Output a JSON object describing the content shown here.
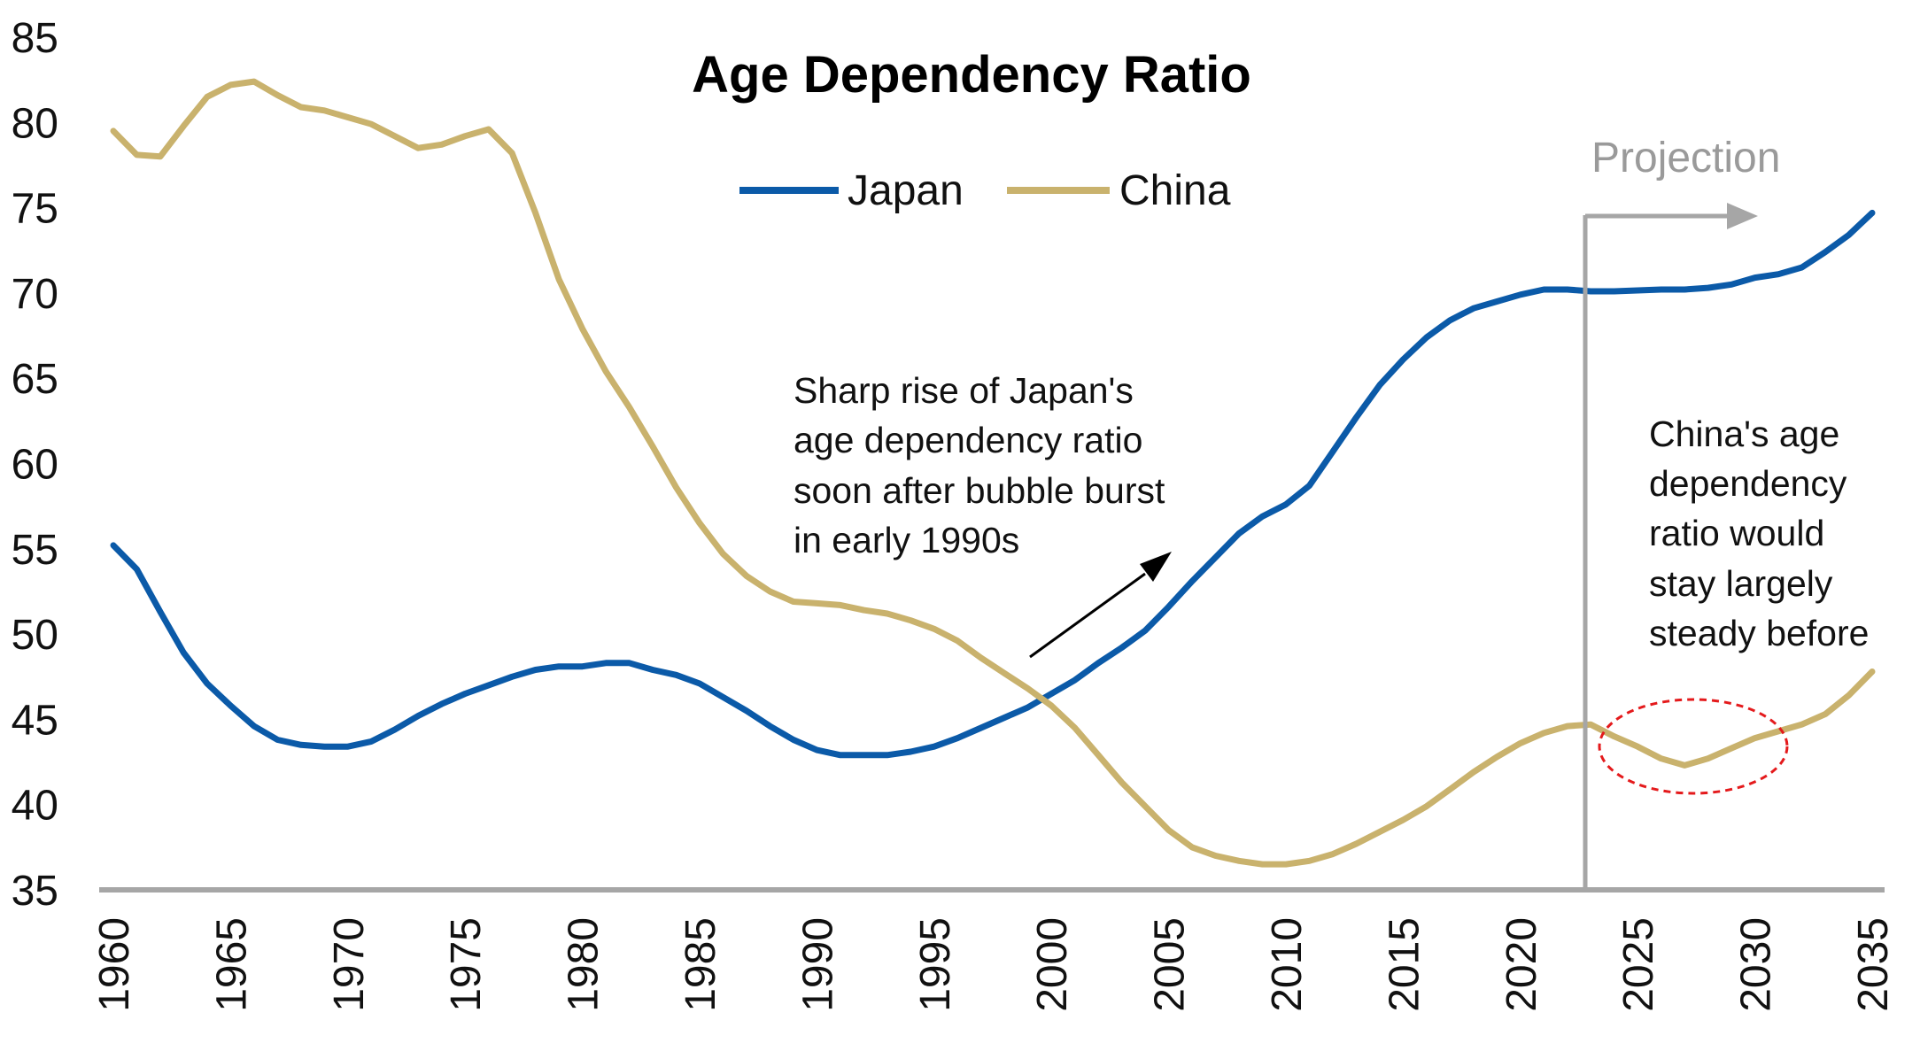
{
  "chart_data": {
    "type": "line",
    "title": "Age Dependency Ratio",
    "xlabel": "",
    "ylabel": "",
    "xlim": [
      1960,
      2035
    ],
    "ylim": [
      35,
      85
    ],
    "y_ticks": [
      35,
      40,
      45,
      50,
      55,
      60,
      65,
      70,
      75,
      80,
      85
    ],
    "x_ticks": [
      1960,
      1965,
      1970,
      1975,
      1980,
      1985,
      1990,
      1995,
      2000,
      2005,
      2010,
      2015,
      2020,
      2025,
      2030,
      2035
    ],
    "grid": false,
    "legend_position": "top-center",
    "x": [
      1960,
      1961,
      1962,
      1963,
      1964,
      1965,
      1966,
      1967,
      1968,
      1969,
      1970,
      1971,
      1972,
      1973,
      1974,
      1975,
      1976,
      1977,
      1978,
      1979,
      1980,
      1981,
      1982,
      1983,
      1984,
      1985,
      1986,
      1987,
      1988,
      1989,
      1990,
      1991,
      1992,
      1993,
      1994,
      1995,
      1996,
      1997,
      1998,
      1999,
      2000,
      2001,
      2002,
      2003,
      2004,
      2005,
      2006,
      2007,
      2008,
      2009,
      2010,
      2011,
      2012,
      2013,
      2014,
      2015,
      2016,
      2017,
      2018,
      2019,
      2020,
      2021,
      2022,
      2023,
      2024,
      2025,
      2026,
      2027,
      2028,
      2029,
      2030,
      2031,
      2032,
      2033,
      2034,
      2035
    ],
    "series": [
      {
        "name": "Japan",
        "color": "#0b5aa8",
        "values": [
          55.2,
          53.8,
          51.3,
          48.9,
          47.1,
          45.8,
          44.6,
          43.8,
          43.5,
          43.4,
          43.4,
          43.7,
          44.4,
          45.2,
          45.9,
          46.5,
          47.0,
          47.5,
          47.9,
          48.1,
          48.1,
          48.3,
          48.3,
          47.9,
          47.6,
          47.1,
          46.3,
          45.5,
          44.6,
          43.8,
          43.2,
          42.9,
          42.9,
          42.9,
          43.1,
          43.4,
          43.9,
          44.5,
          45.1,
          45.7,
          46.5,
          47.3,
          48.3,
          49.2,
          50.2,
          51.6,
          53.1,
          54.5,
          55.9,
          56.9,
          57.6,
          58.7,
          60.7,
          62.7,
          64.6,
          66.1,
          67.4,
          68.4,
          69.1,
          69.5,
          69.9,
          70.2,
          70.2,
          70.1,
          70.1,
          70.15,
          70.2,
          70.2,
          70.3,
          70.5,
          70.9,
          71.1,
          71.5,
          72.4,
          73.4,
          74.7
        ]
      },
      {
        "name": "China",
        "color": "#c9b26d",
        "values": [
          79.5,
          78.1,
          78.0,
          79.8,
          81.5,
          82.2,
          82.4,
          81.6,
          80.9,
          80.7,
          80.3,
          79.9,
          79.2,
          78.5,
          78.7,
          79.2,
          79.6,
          78.2,
          74.7,
          70.8,
          67.9,
          65.4,
          63.3,
          61.0,
          58.6,
          56.5,
          54.7,
          53.4,
          52.5,
          51.9,
          51.8,
          51.7,
          51.4,
          51.2,
          50.8,
          50.3,
          49.6,
          48.6,
          47.7,
          46.8,
          45.8,
          44.5,
          42.9,
          41.3,
          39.9,
          38.5,
          37.5,
          37.0,
          36.7,
          36.5,
          36.5,
          36.7,
          37.1,
          37.7,
          38.4,
          39.1,
          39.9,
          40.9,
          41.9,
          42.8,
          43.6,
          44.2,
          44.6,
          44.7,
          44.0,
          43.4,
          42.7,
          42.3,
          42.7,
          43.3,
          43.9,
          44.3,
          44.7,
          45.3,
          46.4,
          47.8
        ]
      }
    ],
    "annotations": {
      "japan_note": [
        "Sharp rise of Japan's",
        "age dependency ratio",
        "soon after bubble burst",
        "in early 1990s"
      ],
      "china_note": [
        "China's  age",
        "dependency",
        "ratio would",
        "stay largely",
        "steady before"
      ],
      "projection_label": "Projection",
      "projection_start_year": 2023
    }
  }
}
